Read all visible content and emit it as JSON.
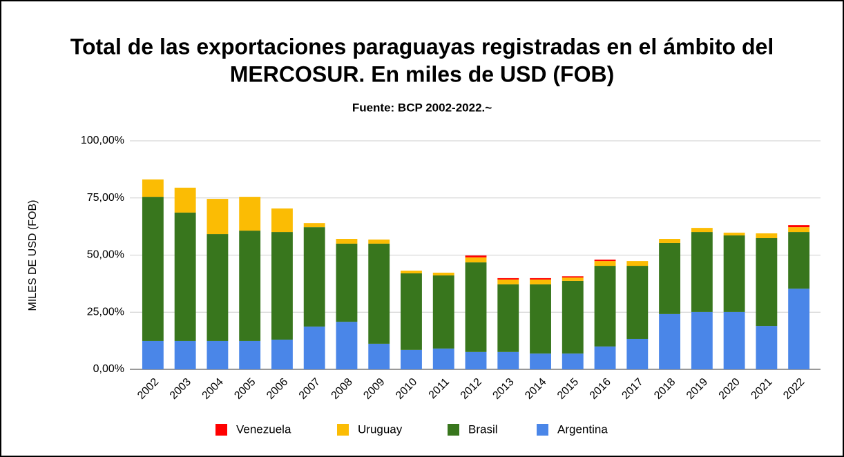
{
  "chart_data": {
    "type": "stacked_bar",
    "title": [
      "Total de las exportaciones paraguayas registradas en el ámbito del",
      "MERCOSUR. En miles de USD (FOB)"
    ],
    "subtitle": "Fuente: BCP 2002-2022.~",
    "y_label": "MILES DE USD (FOB)",
    "categories": [
      "2002",
      "2003",
      "2004",
      "2005",
      "2006",
      "2007",
      "2008",
      "2009",
      "2010",
      "2011",
      "2012",
      "2013",
      "2014",
      "2015",
      "2016",
      "2017",
      "2018",
      "2019",
      "2020",
      "2021",
      "2022"
    ],
    "series": [
      {
        "name": "Venezuela",
        "color": "#ff0000",
        "values": [
          0,
          0,
          0,
          0,
          0,
          0,
          0,
          0,
          0,
          0,
          0.8,
          0.6,
          0.6,
          0.5,
          0.6,
          0,
          0,
          0,
          0,
          0,
          0.9
        ]
      },
      {
        "name": "Uruguay",
        "color": "#fbbc04",
        "values": [
          7.6,
          10.9,
          15.4,
          14.8,
          10.3,
          1.8,
          2.1,
          1.8,
          1.2,
          1.2,
          2.2,
          2.1,
          2.1,
          1.5,
          2.1,
          2.1,
          1.8,
          1.8,
          1.2,
          2.1,
          2.1
        ]
      },
      {
        "name": "Brasil",
        "color": "#38761d",
        "values": [
          63.1,
          56.2,
          46.8,
          48.3,
          47.1,
          43.5,
          34.2,
          43.8,
          33.5,
          32.0,
          39.2,
          29.6,
          30.3,
          31.8,
          35.3,
          32.0,
          31.1,
          35.0,
          33.5,
          38.4,
          24.8
        ]
      },
      {
        "name": "Argentina",
        "color": "#4a86e8",
        "values": [
          12.4,
          12.4,
          12.4,
          12.4,
          13.0,
          18.7,
          20.8,
          11.2,
          8.5,
          9.1,
          7.6,
          7.6,
          6.9,
          6.9,
          10.0,
          13.3,
          24.2,
          25.1,
          25.1,
          19.0,
          35.3
        ]
      }
    ],
    "ylim": [
      0,
      100
    ],
    "yticks": [
      {
        "value": 0,
        "label": "0,00%"
      },
      {
        "value": 25,
        "label": "25,00%"
      },
      {
        "value": 50,
        "label": "50,00%"
      },
      {
        "value": 75,
        "label": "75,00%"
      },
      {
        "value": 100,
        "label": "100,00%"
      }
    ],
    "grid": true
  }
}
